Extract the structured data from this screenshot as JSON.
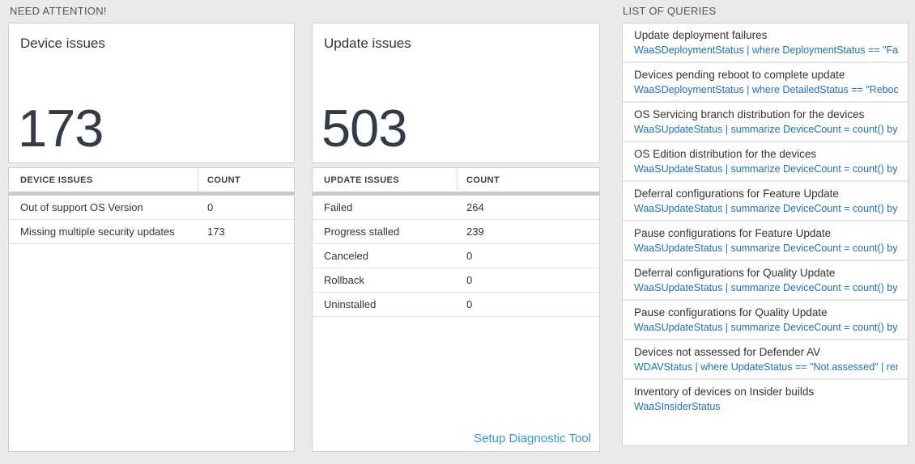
{
  "need_attention": {
    "header": "NEED ATTENTION!",
    "device_tile": {
      "title": "Device issues",
      "count": "173"
    },
    "device_table": {
      "col_label": "DEVICE ISSUES",
      "col_count": "COUNT",
      "rows": [
        {
          "label": "Out of support OS Version",
          "count": "0"
        },
        {
          "label": "Missing multiple security updates",
          "count": "173"
        }
      ]
    },
    "update_tile": {
      "title": "Update issues",
      "count": "503"
    },
    "update_table": {
      "col_label": "UPDATE ISSUES",
      "col_count": "COUNT",
      "rows": [
        {
          "label": "Failed",
          "count": "264"
        },
        {
          "label": "Progress stalled",
          "count": "239"
        },
        {
          "label": "Canceled",
          "count": "0"
        },
        {
          "label": "Rollback",
          "count": "0"
        },
        {
          "label": "Uninstalled",
          "count": "0"
        }
      ],
      "footer_link": "Setup Diagnostic Tool"
    }
  },
  "queries": {
    "header": "LIST OF QUERIES",
    "items": [
      {
        "title": "Update deployment failures",
        "query": "WaaSDeploymentStatus | where DeploymentStatus == \"Failed\" |..."
      },
      {
        "title": "Devices pending reboot to complete update",
        "query": "WaaSDeploymentStatus | where DetailedStatus == \"Reboot pend..."
      },
      {
        "title": "OS Servicing branch distribution for the devices",
        "query": "WaaSUpdateStatus | summarize DeviceCount = count() by OSSer..."
      },
      {
        "title": "OS Edition distribution for the devices",
        "query": "WaaSUpdateStatus | summarize DeviceCount = count() by OSEdit..."
      },
      {
        "title": "Deferral configurations for Feature Update",
        "query": "WaaSUpdateStatus | summarize DeviceCount = count() by Featur..."
      },
      {
        "title": "Pause configurations for Feature Update",
        "query": "WaaSUpdateStatus | summarize DeviceCount = count() by Featur..."
      },
      {
        "title": "Deferral configurations for Quality Update",
        "query": "WaaSUpdateStatus | summarize DeviceCount = count() by Qualit..."
      },
      {
        "title": "Pause configurations for Quality Update",
        "query": "WaaSUpdateStatus | summarize DeviceCount = count() by Qualit..."
      },
      {
        "title": "Devices not assessed for Defender AV",
        "query": "WDAVStatus | where UpdateStatus == \"Not assessed\" | render ta..."
      },
      {
        "title": "Inventory of devices on Insider builds",
        "query": "WaaSInsiderStatus"
      }
    ]
  },
  "colors": {
    "page_background": "#eaeaea",
    "query_text_blue": "#1f6fbf",
    "link_blue": "#3299dd",
    "big_number": "#333b44",
    "thick_divider_gray": "#c9c9c9"
  }
}
